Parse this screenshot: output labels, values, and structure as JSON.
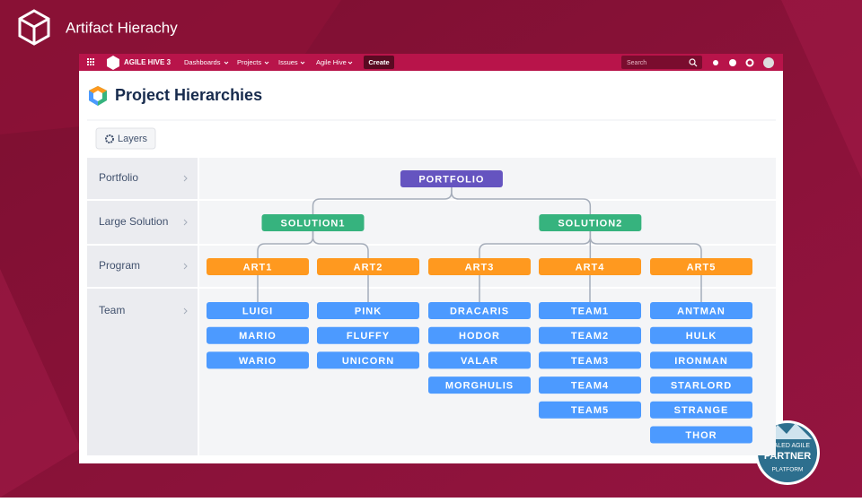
{
  "header": {
    "title": "Artifact Hierachy"
  },
  "navbar": {
    "product": "AGILE HIVE 3",
    "items": [
      "Dashboards",
      "Projects",
      "Issues",
      "Agile Hive"
    ],
    "create": "Create",
    "search": "Search"
  },
  "page": {
    "title": "Project Hierarchies",
    "layers_button": "Layers"
  },
  "levels": [
    "Portfolio",
    "Large Solution",
    "Program",
    "Team"
  ],
  "hierarchy": {
    "label": "PORTFOLIO",
    "solutions": [
      {
        "label": "SOLUTION1",
        "arts": [
          {
            "label": "ART1",
            "teams": [
              "LUIGI",
              "MARIO",
              "WARIO"
            ]
          },
          {
            "label": "ART2",
            "teams": [
              "PINK",
              "FLUFFY",
              "UNICORN"
            ]
          }
        ]
      },
      {
        "label": "SOLUTION2",
        "arts": [
          {
            "label": "ART3",
            "teams": [
              "DRACARIS",
              "HODOR",
              "VALAR",
              "MORGHULIS"
            ]
          },
          {
            "label": "ART4",
            "teams": [
              "TEAM1",
              "TEAM2",
              "TEAM3",
              "TEAM4",
              "TEAM5"
            ]
          },
          {
            "label": "ART5",
            "teams": [
              "ANTMAN",
              "HULK",
              "IRONMAN",
              "STARLORD",
              "STRANGE",
              "THOR"
            ]
          }
        ]
      }
    ]
  },
  "badge": {
    "line1": "SCALED AGILE",
    "line2": "PARTNER",
    "line3": "PLATFORM"
  }
}
